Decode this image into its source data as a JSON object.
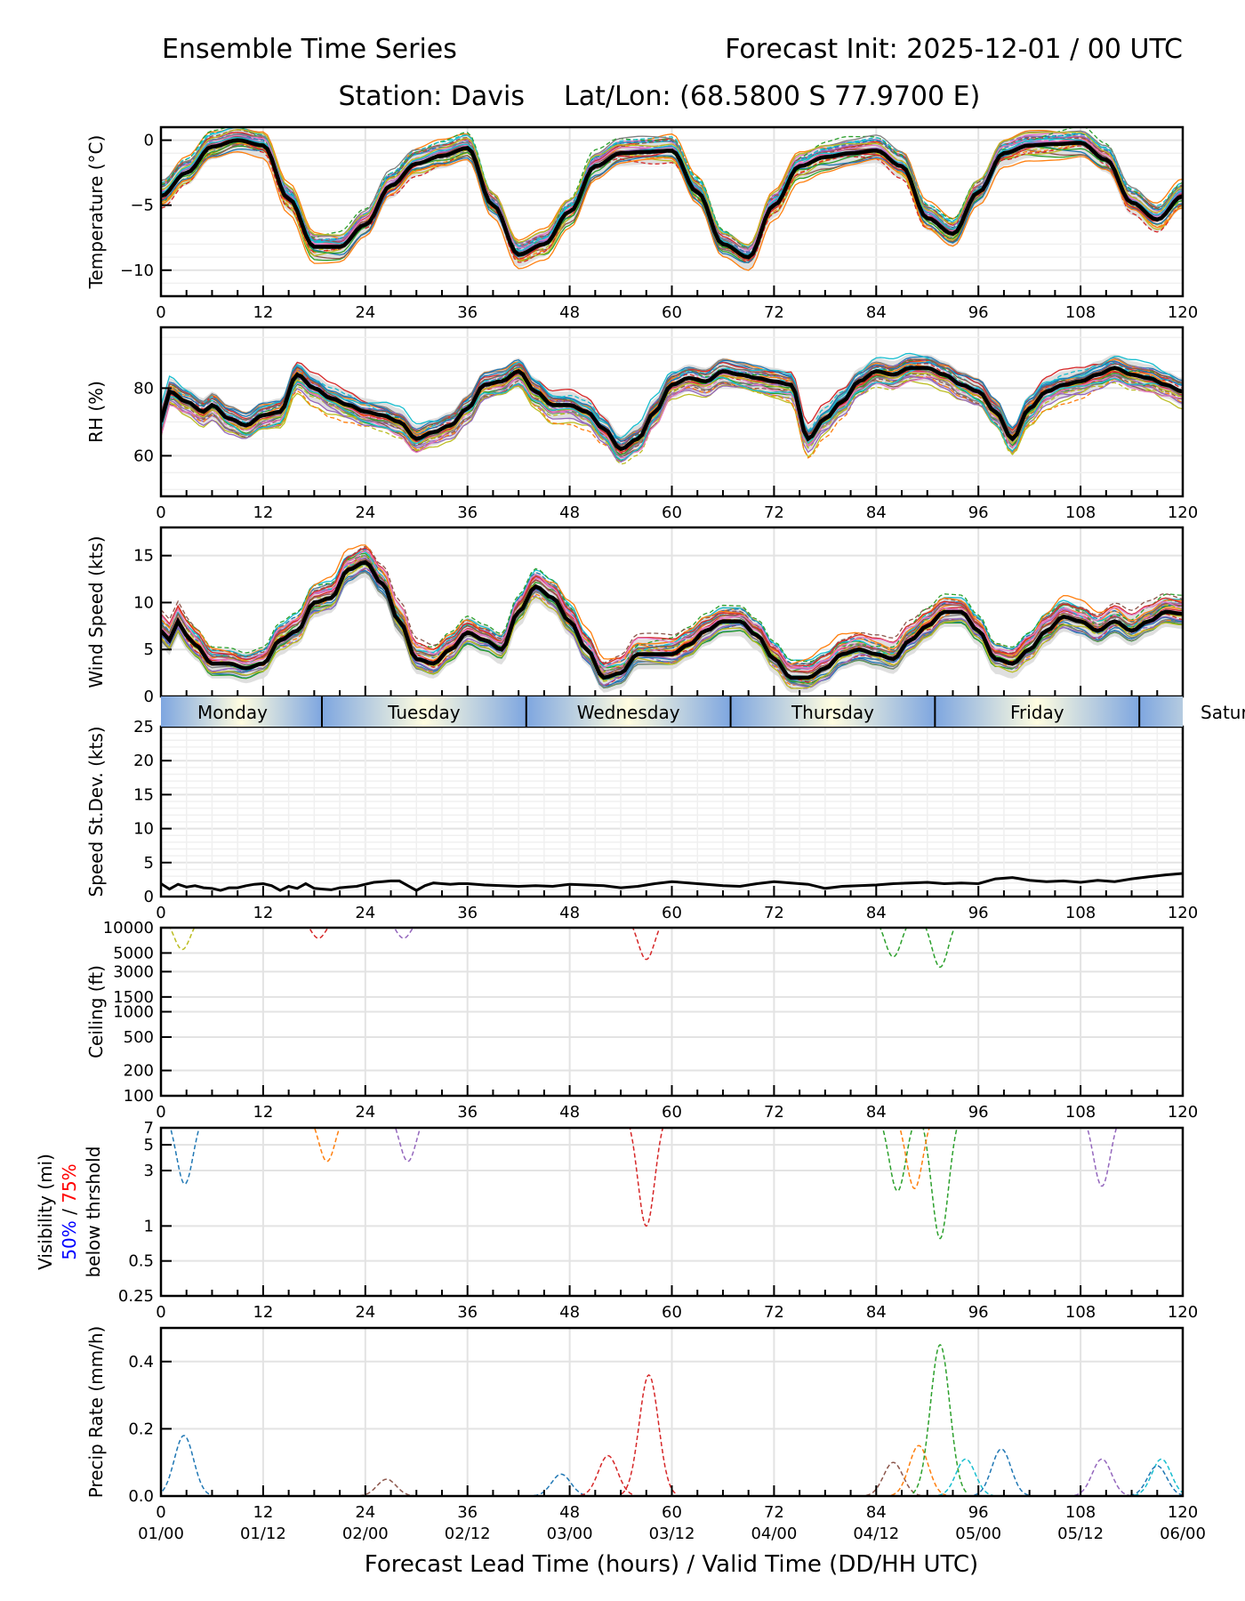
{
  "header": {
    "title_left": "Ensemble Time Series",
    "title_right": "Forecast Init: 2025-12-01 / 00 UTC",
    "station": "Station: Davis",
    "latlon": "Lat/Lon: (68.5800 S 77.9700 E)"
  },
  "xaxis": {
    "xlim": [
      0,
      120
    ],
    "ticks": [
      0,
      12,
      24,
      36,
      48,
      60,
      72,
      84,
      96,
      108,
      120
    ],
    "tick_labels": [
      "0",
      "12",
      "24",
      "36",
      "48",
      "60",
      "72",
      "84",
      "96",
      "108",
      "120"
    ],
    "valid_time_labels": [
      "01/00",
      "01/12",
      "02/00",
      "02/12",
      "03/00",
      "03/12",
      "04/00",
      "04/12",
      "05/00",
      "05/12",
      "06/00"
    ],
    "xlabel": "Forecast Lead Time (hours) / Valid Time (DD/HH UTC)"
  },
  "day_bar": {
    "days": [
      {
        "label": "Monday",
        "start": 0,
        "end": 18.9
      },
      {
        "label": "Tuesday",
        "start": 18.9,
        "end": 42.9
      },
      {
        "label": "Wednesday",
        "start": 42.9,
        "end": 66.9
      },
      {
        "label": "Thursday",
        "start": 66.9,
        "end": 90.9
      },
      {
        "label": "Friday",
        "start": 90.9,
        "end": 114.9
      },
      {
        "label": "Saturday",
        "start": 114.9,
        "end": 138.9
      }
    ],
    "colors": {
      "night": "#7ea6e0",
      "day": "#fffde0"
    }
  },
  "colors": {
    "mean": "#000000",
    "spread": "#d9d9d9",
    "members": [
      "#1f77b4",
      "#ff7f0e",
      "#2ca02c",
      "#d62728",
      "#9467bd",
      "#8c564b",
      "#e377c2",
      "#7f7f7f",
      "#bcbd22",
      "#17becf"
    ]
  },
  "chart_data": [
    {
      "type": "line",
      "id": "temperature",
      "ylabel": "Temperature (°C)",
      "ylim": [
        -12,
        1
      ],
      "yticks": [
        0,
        -5,
        -10
      ],
      "ytick_labels": [
        "0",
        "−5",
        "−10"
      ],
      "grid": true,
      "mean": {
        "x": [
          0,
          3,
          6,
          9,
          12,
          15,
          18,
          21,
          24,
          27,
          30,
          33,
          36,
          39,
          42,
          45,
          48,
          51,
          54,
          57,
          60,
          63,
          66,
          69,
          72,
          75,
          78,
          81,
          84,
          87,
          90,
          93,
          96,
          99,
          102,
          105,
          108,
          111,
          114,
          117,
          120
        ],
        "y": [
          -4.3,
          -2.5,
          -0.5,
          0,
          -0.4,
          -4.5,
          -8.2,
          -8.2,
          -6.5,
          -3.5,
          -1.8,
          -1.2,
          -0.6,
          -5,
          -8.8,
          -8,
          -5.5,
          -2,
          -1,
          -0.9,
          -0.8,
          -4,
          -8,
          -9,
          -5,
          -2,
          -1.3,
          -1,
          -0.8,
          -2,
          -6,
          -7.2,
          -4,
          -1,
          -0.4,
          -0.3,
          -0.2,
          -1.5,
          -4.8,
          -6.1,
          -4.3
        ]
      },
      "members_spread": 1.2
    },
    {
      "type": "line",
      "id": "rh",
      "ylabel": "RH (%)",
      "ylim": [
        48,
        98
      ],
      "yticks": [
        60,
        80
      ],
      "ytick_labels": [
        "60",
        "80"
      ],
      "grid": true,
      "mean": {
        "x": [
          0,
          1,
          3,
          5,
          6,
          8,
          10,
          12,
          14,
          16,
          18,
          20,
          22,
          24,
          26,
          28,
          30,
          32,
          34,
          36,
          38,
          40,
          42,
          44,
          46,
          48,
          50,
          52,
          54,
          56,
          58,
          60,
          62,
          64,
          66,
          68,
          70,
          72,
          74,
          76,
          78,
          80,
          82,
          84,
          86,
          88,
          90,
          92,
          94,
          96,
          98,
          100,
          102,
          104,
          106,
          108,
          110,
          112,
          114,
          116,
          118,
          120
        ],
        "y": [
          70,
          79,
          76,
          73,
          75,
          71,
          69,
          72,
          73,
          84,
          80,
          77,
          75,
          73,
          72,
          70,
          65,
          67,
          69,
          74,
          81,
          82,
          85,
          79,
          75,
          75,
          73,
          68,
          62,
          65,
          73,
          81,
          83,
          82,
          85,
          84,
          83,
          82,
          81,
          65,
          71,
          76,
          82,
          85,
          84,
          86,
          86,
          84,
          81,
          79,
          73,
          65,
          74,
          79,
          81,
          82,
          84,
          86,
          84,
          83,
          81,
          79
        ]
      },
      "members_spread": 5
    },
    {
      "type": "line",
      "id": "wind_speed",
      "ylabel": "Wind Speed (kts)",
      "ylim": [
        0,
        18
      ],
      "yticks": [
        0,
        5,
        10,
        15
      ],
      "ytick_labels": [
        "0",
        "5",
        "10",
        "15"
      ],
      "grid": true,
      "mean": {
        "x": [
          0,
          1,
          2,
          3,
          4,
          6,
          8,
          10,
          12,
          14,
          16,
          18,
          20,
          22,
          24,
          26,
          28,
          30,
          32,
          34,
          36,
          38,
          40,
          42,
          44,
          46,
          48,
          50,
          52,
          54,
          56,
          58,
          60,
          62,
          64,
          66,
          68,
          70,
          72,
          74,
          76,
          78,
          80,
          82,
          84,
          86,
          88,
          90,
          92,
          94,
          96,
          98,
          100,
          102,
          104,
          106,
          108,
          110,
          112,
          114,
          116,
          118,
          120
        ],
        "y": [
          7,
          6,
          8,
          6.5,
          5.5,
          3.5,
          3.5,
          3,
          3.5,
          6,
          7,
          10,
          10.5,
          13.5,
          14.3,
          12,
          8,
          4,
          3.5,
          5,
          6.8,
          6,
          5,
          9,
          11.7,
          10.5,
          8,
          5,
          2,
          2.5,
          4.5,
          4.5,
          4.5,
          5.5,
          7,
          8,
          8,
          6.5,
          4,
          2,
          2,
          3,
          4.5,
          5,
          4.5,
          4,
          6,
          7.5,
          9,
          9,
          7,
          4,
          3.5,
          5,
          7,
          8.5,
          8,
          7,
          8,
          7,
          8,
          9,
          8.8
        ]
      },
      "members_spread": 2
    },
    {
      "type": "line",
      "id": "speed_stdev",
      "ylabel": "Speed St.Dev. (kts)",
      "ylim": [
        0,
        25
      ],
      "yticks": [
        0,
        5,
        10,
        15,
        20,
        25
      ],
      "ytick_labels": [
        "0",
        "5",
        "10",
        "15",
        "20",
        "25"
      ],
      "grid": true,
      "series": [
        {
          "name": "std",
          "x": [
            0,
            1,
            2,
            3,
            4,
            5,
            6,
            7,
            8,
            9,
            10,
            11,
            12,
            13,
            14,
            15,
            16,
            17,
            18,
            19,
            20,
            21,
            22,
            23,
            24,
            25,
            26,
            27,
            28,
            29,
            30,
            31,
            32,
            33,
            34,
            35,
            36,
            38,
            40,
            42,
            44,
            46,
            48,
            50,
            52,
            54,
            56,
            58,
            60,
            62,
            64,
            66,
            68,
            70,
            72,
            74,
            76,
            78,
            80,
            82,
            84,
            86,
            88,
            90,
            92,
            94,
            96,
            98,
            100,
            102,
            104,
            106,
            108,
            110,
            112,
            114,
            116,
            118,
            120
          ],
          "y": [
            1.9,
            1.1,
            1.8,
            1.4,
            1.6,
            1.3,
            1.2,
            0.9,
            1.3,
            1.3,
            1.6,
            1.8,
            1.9,
            1.6,
            0.9,
            1.5,
            1.2,
            1.9,
            1.2,
            1.1,
            1.0,
            1.3,
            1.4,
            1.5,
            1.8,
            2.1,
            2.2,
            2.3,
            2.3,
            1.6,
            0.9,
            1.6,
            2.0,
            1.9,
            1.8,
            1.9,
            1.9,
            1.7,
            1.6,
            1.5,
            1.6,
            1.5,
            1.8,
            1.7,
            1.6,
            1.3,
            1.5,
            1.9,
            2.2,
            2.0,
            1.8,
            1.6,
            1.5,
            1.9,
            2.2,
            2.0,
            1.8,
            1.2,
            1.5,
            1.6,
            1.7,
            1.9,
            2.0,
            2.1,
            1.9,
            2.0,
            1.9,
            2.6,
            2.8,
            2.4,
            2.2,
            2.3,
            2.1,
            2.4,
            2.2,
            2.6,
            2.9,
            3.2,
            3.4
          ]
        }
      ]
    },
    {
      "type": "line",
      "id": "ceiling",
      "ylabel": "Ceiling (ft)",
      "yscale": "log",
      "ylim": [
        100,
        10000
      ],
      "yticks": [
        100,
        200,
        500,
        1000,
        1500,
        3000,
        5000,
        10000
      ],
      "ytick_labels": [
        "100",
        "200",
        "500",
        "1000",
        "1500",
        "3000",
        "5000",
        "10000"
      ],
      "grid": true,
      "notable_dips": [
        {
          "x": 2.5,
          "y": 5500,
          "color": "#bcbd22"
        },
        {
          "x": 18.5,
          "y": 7500,
          "color": "#d62728"
        },
        {
          "x": 28.5,
          "y": 7500,
          "color": "#9467bd"
        },
        {
          "x": 57,
          "y": 4200,
          "color": "#d62728"
        },
        {
          "x": 91.5,
          "y": 3400,
          "color": "#2ca02c"
        },
        {
          "x": 86,
          "y": 4500,
          "color": "#2ca02c"
        }
      ]
    },
    {
      "type": "line",
      "id": "visibility",
      "ylabel_lines": [
        "Visibility (mi)",
        "50% / 75%",
        "below thrshold"
      ],
      "ylabel_parts": {
        "main": "Visibility (mi)",
        "p50": "50%",
        "sep": " / ",
        "p75": "75%",
        "sub": "below thrshold"
      },
      "ylabel_colors": {
        "p50": "#0000ff",
        "p75": "#ff0000"
      },
      "yscale": "log",
      "ylim": [
        0.25,
        7
      ],
      "yticks": [
        0.25,
        0.5,
        1,
        3,
        5,
        7
      ],
      "ytick_labels": [
        "0.25",
        "0.5",
        "1",
        "3",
        "5",
        "7"
      ],
      "grid": true,
      "notable_dips": [
        {
          "x": 2.8,
          "y": 2.3,
          "color": "#1f77b4"
        },
        {
          "x": 19.5,
          "y": 3.6,
          "color": "#ff7f0e"
        },
        {
          "x": 29,
          "y": 3.6,
          "color": "#9467bd"
        },
        {
          "x": 57,
          "y": 1.0,
          "color": "#d62728"
        },
        {
          "x": 91.5,
          "y": 0.78,
          "color": "#2ca02c"
        },
        {
          "x": 86.5,
          "y": 2.0,
          "color": "#2ca02c"
        },
        {
          "x": 88.5,
          "y": 2.1,
          "color": "#ff7f0e"
        },
        {
          "x": 110.5,
          "y": 2.2,
          "color": "#9467bd"
        }
      ]
    },
    {
      "type": "line",
      "id": "precip_rate",
      "ylabel": "Precip Rate (mm/h)",
      "ylim": [
        0,
        0.5
      ],
      "yticks": [
        0.0,
        0.2,
        0.4
      ],
      "ytick_labels": [
        "0.0",
        "0.2",
        "0.4"
      ],
      "grid": true,
      "notable_peaks": [
        {
          "x": 2.7,
          "y": 0.18,
          "color": "#1f77b4"
        },
        {
          "x": 26.5,
          "y": 0.05,
          "color": "#8c564b"
        },
        {
          "x": 47,
          "y": 0.065,
          "color": "#1f77b4"
        },
        {
          "x": 52.5,
          "y": 0.12,
          "color": "#d62728"
        },
        {
          "x": 57.3,
          "y": 0.36,
          "color": "#d62728"
        },
        {
          "x": 86,
          "y": 0.1,
          "color": "#8c564b"
        },
        {
          "x": 89,
          "y": 0.15,
          "color": "#ff7f0e"
        },
        {
          "x": 91.5,
          "y": 0.45,
          "color": "#2ca02c"
        },
        {
          "x": 94.5,
          "y": 0.11,
          "color": "#17becf"
        },
        {
          "x": 98.7,
          "y": 0.14,
          "color": "#1f77b4"
        },
        {
          "x": 110.5,
          "y": 0.11,
          "color": "#9467bd"
        },
        {
          "x": 117.5,
          "y": 0.11,
          "color": "#17becf"
        },
        {
          "x": 117,
          "y": 0.09,
          "color": "#1f77b4"
        }
      ]
    }
  ]
}
